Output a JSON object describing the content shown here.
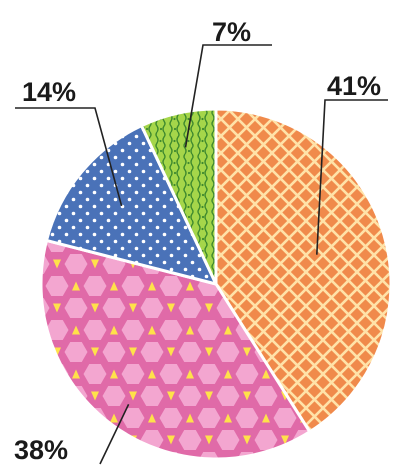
{
  "chart_data": {
    "type": "pie",
    "start_angle_deg": 0,
    "direction": "clockwise",
    "slices": [
      {
        "label": "41%",
        "value": 41,
        "color": "#f08a4b",
        "pattern": "diamond-lattice",
        "pattern_color": "#ffe2a8"
      },
      {
        "label": "38%",
        "value": 38,
        "color": "#f3a6d0",
        "pattern": "hexagons-triangles",
        "pattern_color": "#e06aa8",
        "accent_color": "#ffe24a"
      },
      {
        "label": "14%",
        "value": 14,
        "color": "#4a72b8",
        "pattern": "dots",
        "pattern_color": "#ffffff"
      },
      {
        "label": "7%",
        "value": 7,
        "color": "#a5d64a",
        "pattern": "foliage",
        "pattern_color": "#3f8a2e"
      }
    ],
    "outline_color": "#ffffff"
  }
}
